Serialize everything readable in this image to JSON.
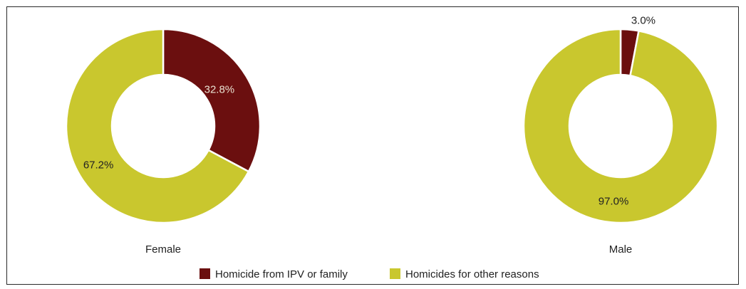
{
  "chart_data": {
    "type": "pie",
    "variant": "donut",
    "charts": [
      {
        "category": "Female",
        "slices": [
          {
            "series": "Homicide from IPV or family",
            "value": 32.8,
            "label": "32.8%"
          },
          {
            "series": "Homicides for other reasons",
            "value": 67.2,
            "label": "67.2%"
          }
        ]
      },
      {
        "category": "Male",
        "slices": [
          {
            "series": "Homicide from IPV or family",
            "value": 3.0,
            "label": "3.0%"
          },
          {
            "series": "Homicides for other reasons",
            "value": 97.0,
            "label": "97.0%"
          }
        ]
      }
    ],
    "legend": {
      "placement": "bottom",
      "entries": [
        {
          "name": "Homicide from IPV or family",
          "color": "#6b0f0f"
        },
        {
          "name": "Homicides for other reasons",
          "color": "#c9c72e"
        }
      ]
    }
  },
  "colors": {
    "ipv": "#6b0f0f",
    "other": "#c9c72e",
    "label_on_dark": "#e8e0d0",
    "label_on_light": "#222222",
    "frame": "#2a2a2a"
  }
}
